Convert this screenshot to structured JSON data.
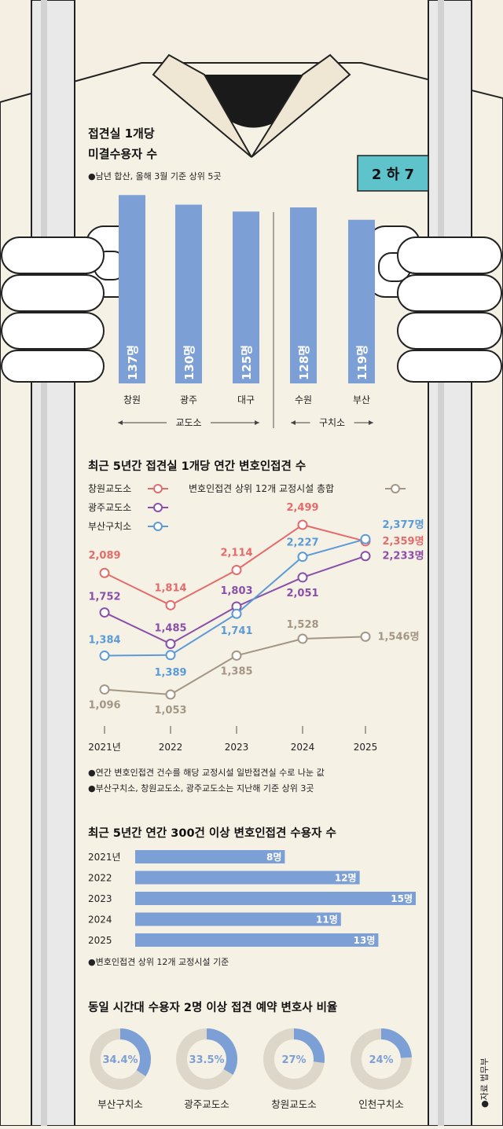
{
  "badge": "2 하 7",
  "source": "●자료 법무부",
  "chart_data": [
    {
      "type": "bar",
      "title": "접견실 1개당 미결수용자 수",
      "title_lines": [
        "접견실 1개당",
        "미결수용자 수"
      ],
      "note": "●남년 합산, 올해 3월 기준 상위 5곳",
      "categories": [
        "창원",
        "광주",
        "대구",
        "수원",
        "부산"
      ],
      "values": [
        137,
        130,
        125,
        128,
        119
      ],
      "value_labels": [
        "137명",
        "130명",
        "125명",
        "128명",
        "119명"
      ],
      "groups": [
        {
          "label": "교도소",
          "categories": [
            "창원",
            "광주",
            "대구"
          ]
        },
        {
          "label": "구치소",
          "categories": [
            "수원",
            "부산"
          ]
        }
      ],
      "bar_color": "#7c9fd6"
    },
    {
      "type": "line",
      "title": "최근 5년간 접견실 1개당 연간 변호인접견 수",
      "x": [
        "2021년",
        "2022",
        "2023",
        "2024",
        "2025"
      ],
      "series": [
        {
          "name": "창원교도소",
          "color": "#e46b6b",
          "values": [
            2089,
            1814,
            2114,
            2499,
            2359
          ],
          "labels": [
            "2,089",
            "1,814",
            "2,114",
            "2,499",
            "2,359명"
          ]
        },
        {
          "name": "광주교도소",
          "color": "#8a4fa8",
          "values": [
            1752,
            1485,
            1803,
            2051,
            2233
          ],
          "labels": [
            "1,752",
            "1,485",
            "1,803",
            "2,051",
            "2,233명"
          ]
        },
        {
          "name": "부산구치소",
          "color": "#5b9ad8",
          "values": [
            1384,
            1389,
            1741,
            2227,
            2377
          ],
          "labels": [
            "1,384",
            "1,389",
            "1,741",
            "2,227",
            "2,377명"
          ]
        },
        {
          "name": "변호인접견 상위 12개 교정시설 총합",
          "color": "#a39684",
          "values": [
            1096,
            1053,
            1385,
            1528,
            1546
          ],
          "labels": [
            "1,096",
            "1,053",
            "1,385",
            "1,528",
            "1,546명"
          ]
        }
      ],
      "notes": [
        "●연간 변호인접견 건수를 해당 교정시설 일반접견실 수로 나눈 값",
        "●부산구치소, 창원교도소, 광주교도소는 지난해 기준 상위 3곳"
      ]
    },
    {
      "type": "bar",
      "orientation": "horizontal",
      "title": "최근 5년간 연간 300건 이상 변호인접견 수용자 수",
      "categories": [
        "2021년",
        "2022",
        "2023",
        "2024",
        "2025"
      ],
      "values": [
        8,
        12,
        15,
        11,
        13
      ],
      "value_labels": [
        "8명",
        "12명",
        "15명",
        "11명",
        "13명"
      ],
      "note": "●변호인접견 상위 12개 교정시설 기준",
      "bar_color": "#7c9fd6"
    },
    {
      "type": "pie",
      "title": "동일 시간대 수용자 2명 이상 접견 예약 변호사 비율",
      "categories": [
        "부산구치소",
        "광주교도소",
        "창원교도소",
        "인천구치소"
      ],
      "values": [
        34.4,
        33.5,
        27,
        24
      ],
      "value_labels": [
        "34.4%",
        "33.5%",
        "27%",
        "24%"
      ],
      "accent": "#7c9fd6",
      "track": "#dcd7c9"
    }
  ]
}
